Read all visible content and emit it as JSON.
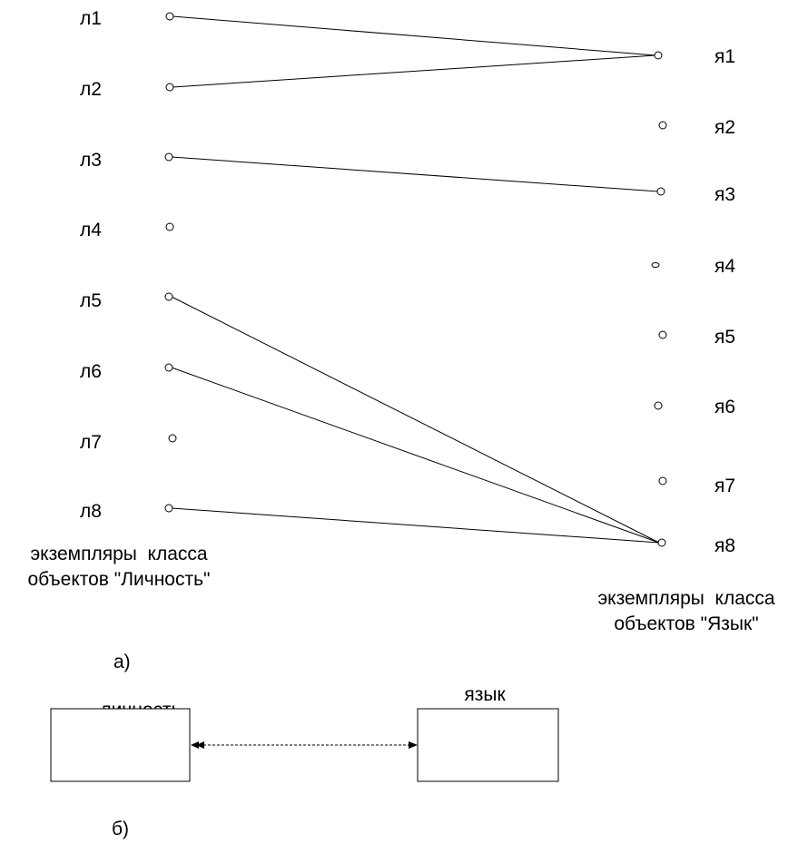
{
  "part_a": {
    "left_nodes": [
      "л1",
      "л2",
      "л3",
      "л4",
      "л5",
      "л6",
      "л7",
      "л8"
    ],
    "right_nodes": [
      "я1",
      "я2",
      "я3",
      "я4",
      "я5",
      "я6",
      "я7",
      "я8"
    ],
    "links": [
      {
        "from": "л1",
        "to": "я1"
      },
      {
        "from": "л2",
        "to": "я1"
      },
      {
        "from": "л3",
        "to": "я3"
      },
      {
        "from": "л5",
        "to": "я8"
      },
      {
        "from": "л6",
        "to": "я8"
      },
      {
        "from": "л8",
        "to": "я8"
      }
    ],
    "left_caption": [
      "экземпляры  класса",
      "объектов \"Личность\""
    ],
    "right_caption": [
      "экземпляры  класса",
      "объектов \"Язык\""
    ],
    "label": "а)"
  },
  "part_b": {
    "left_box_title": "личность",
    "right_box_title": "язык",
    "label": "б)"
  }
}
